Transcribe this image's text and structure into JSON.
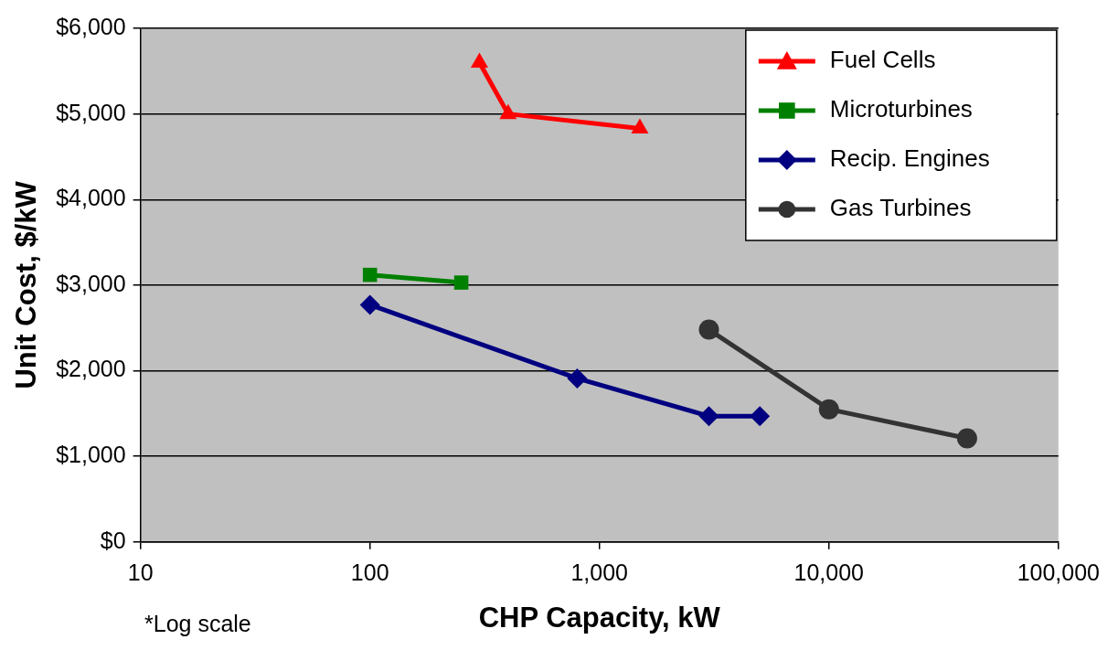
{
  "chart_data": {
    "type": "line",
    "xlabel": "CHP Capacity, kW",
    "ylabel": "Unit Cost, $/kW",
    "log": "x",
    "grid": "y",
    "legend": "top right",
    "xlim": [
      10,
      100000
    ],
    "xticks": [
      10,
      100,
      {
        "value": 1000,
        "label": "1,000"
      },
      {
        "value": 10000,
        "label": "10,000"
      },
      {
        "value": 100000,
        "label": "100,000"
      }
    ],
    "ylim": [
      0,
      6000
    ],
    "yticks": [
      {
        "value": 0,
        "label": "$0"
      },
      {
        "value": 1000,
        "label": "$1,000"
      },
      {
        "value": 2000,
        "label": "$2,000"
      },
      {
        "value": 3000,
        "label": "$3,000"
      },
      {
        "value": 4000,
        "label": "$4,000"
      },
      {
        "value": 5000,
        "label": "$5,000"
      },
      {
        "value": 6000,
        "label": "$6,000"
      }
    ],
    "annotations": [
      "*Log scale"
    ],
    "series": [
      {
        "name": "Fuel Cells",
        "color": "#ff0000",
        "marker": "triangle",
        "x": [
          300,
          400,
          1500
        ],
        "values": [
          5600,
          5000,
          4830
        ]
      },
      {
        "name": "Microturbines",
        "color": "#008000",
        "marker": "square",
        "x": [
          100,
          250
        ],
        "values": [
          3120,
          3030
        ]
      },
      {
        "name": "Recip. Engines",
        "color": "#000080",
        "marker": "diamond",
        "x": [
          100,
          800,
          3000,
          5000
        ],
        "values": [
          2770,
          1910,
          1470,
          1470
        ]
      },
      {
        "name": "Gas Turbines",
        "color": "#333333",
        "marker": "circle",
        "x": [
          3000,
          10000,
          40000
        ],
        "values": [
          2480,
          1550,
          1210
        ]
      }
    ]
  }
}
